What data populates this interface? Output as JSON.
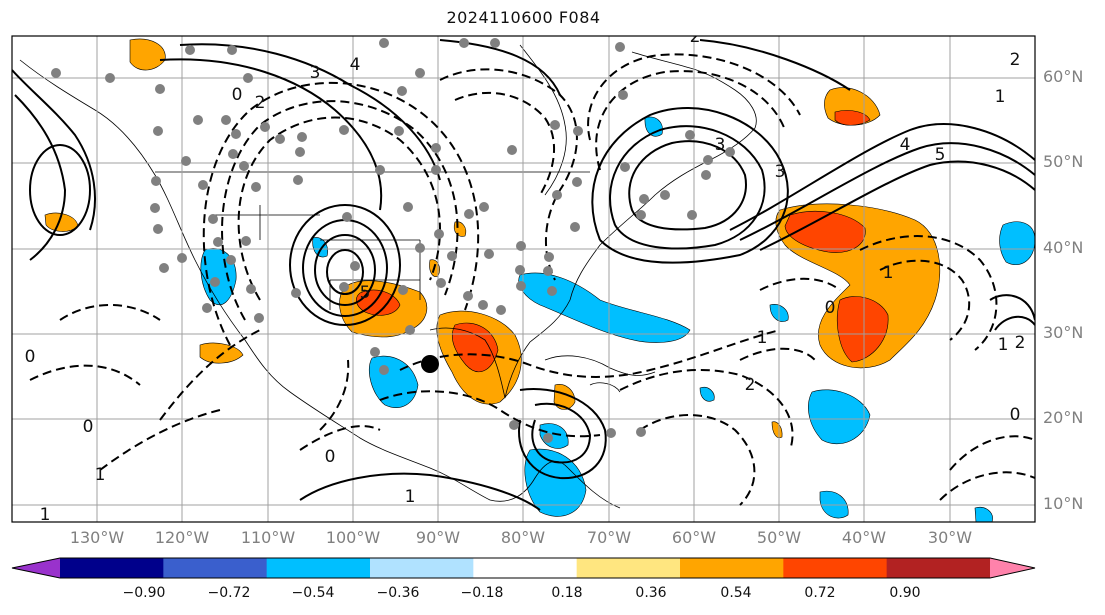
{
  "title": "2024110600 F084",
  "lat_labels": [
    "60°N",
    "50°N",
    "40°N",
    "30°N",
    "20°N",
    "10°N"
  ],
  "lon_labels": [
    "130°W",
    "120°W",
    "110°W",
    "100°W",
    "90°W",
    "80°W",
    "70°W",
    "60°W",
    "50°W",
    "40°W",
    "30°W"
  ],
  "contour_labels": [
    "0",
    "1",
    "2",
    "3",
    "4",
    "5",
    "0",
    "1",
    "2",
    "3",
    "1",
    "2",
    "0",
    "1",
    "0",
    "1",
    "0",
    "2",
    "3",
    "4",
    "5",
    "0",
    "1",
    "2",
    "1"
  ],
  "colorbar": {
    "ticks": [
      "−0.90",
      "−0.72",
      "−0.54",
      "−0.36",
      "−0.18",
      "0.18",
      "0.36",
      "0.54",
      "0.72",
      "0.90"
    ],
    "colors": [
      "#9932cc",
      "#00008b",
      "#3a5fcd",
      "#00bfff",
      "#b0e2ff",
      "#ffffff",
      "#ffe680",
      "#ffa500",
      "#ff4500",
      "#b22222",
      "#ff82ab"
    ]
  },
  "colors": {
    "positive_fill": "#ffa500",
    "positive_core": "#ff4500",
    "negative_fill": "#00bfff",
    "station_marker": "#808080",
    "focus_marker": "#000000"
  }
}
